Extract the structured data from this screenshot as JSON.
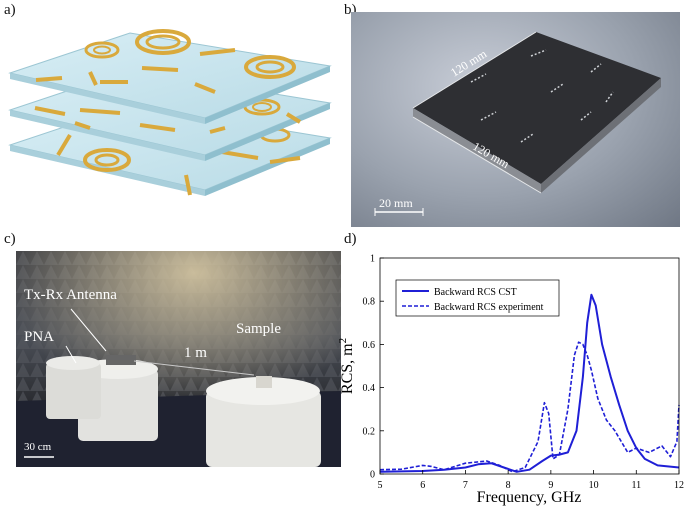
{
  "panels": {
    "a": {
      "label": "a)"
    },
    "b": {
      "label": "b)",
      "dim_top": "120 mm",
      "dim_bottom": "120 mm",
      "scale_bar": "20 mm"
    },
    "c": {
      "label": "c)",
      "antenna": "Tx-Rx Antenna",
      "pna": "PNA",
      "sample": "Sample",
      "distance": "1 m",
      "scale_bar": "30 cm"
    },
    "d": {
      "label": "d)"
    }
  },
  "colors": {
    "series": "#1f1fd6",
    "gold": "#d9a93c",
    "sheet": "#cfe6ee"
  },
  "chart_data": {
    "type": "line",
    "xlabel": "Frequency, GHz",
    "ylabel": "RCS, m",
    "ylabel_sup": "2",
    "xlim": [
      5,
      12
    ],
    "ylim": [
      0,
      1
    ],
    "xticks": [
      "5",
      "6",
      "7",
      "8",
      "9",
      "10",
      "11",
      "12"
    ],
    "yticks": [
      "0",
      "0.2",
      "0.4",
      "0.6",
      "0.8",
      "1"
    ],
    "legend": [
      "Backward RCS CST",
      "Backward RCS experiment"
    ],
    "series": [
      {
        "name": "Backward RCS CST",
        "style": "solid",
        "x": [
          5,
          5.5,
          6,
          6.5,
          7,
          7.3,
          7.6,
          7.9,
          8.2,
          8.5,
          8.8,
          9.0,
          9.2,
          9.4,
          9.6,
          9.75,
          9.85,
          9.95,
          10.05,
          10.2,
          10.4,
          10.6,
          10.8,
          11.0,
          11.2,
          11.5,
          12
        ],
        "y": [
          0.01,
          0.012,
          0.014,
          0.02,
          0.03,
          0.045,
          0.05,
          0.03,
          0.01,
          0.02,
          0.06,
          0.085,
          0.09,
          0.1,
          0.2,
          0.45,
          0.7,
          0.83,
          0.78,
          0.6,
          0.45,
          0.32,
          0.2,
          0.12,
          0.07,
          0.04,
          0.03
        ]
      },
      {
        "name": "Backward RCS experiment",
        "style": "dashed",
        "x": [
          5,
          5.5,
          6,
          6.2,
          6.5,
          7,
          7.5,
          7.8,
          8.1,
          8.4,
          8.7,
          8.85,
          8.95,
          9.05,
          9.2,
          9.4,
          9.55,
          9.65,
          9.75,
          9.85,
          9.95,
          10.1,
          10.3,
          10.5,
          10.8,
          11,
          11.3,
          11.6,
          11.8,
          11.95,
          12
        ],
        "y": [
          0.02,
          0.022,
          0.04,
          0.035,
          0.02,
          0.05,
          0.06,
          0.04,
          0.01,
          0.03,
          0.15,
          0.33,
          0.28,
          0.07,
          0.09,
          0.3,
          0.55,
          0.61,
          0.6,
          0.55,
          0.48,
          0.35,
          0.25,
          0.2,
          0.1,
          0.12,
          0.1,
          0.13,
          0.08,
          0.15,
          0.32
        ]
      }
    ]
  }
}
